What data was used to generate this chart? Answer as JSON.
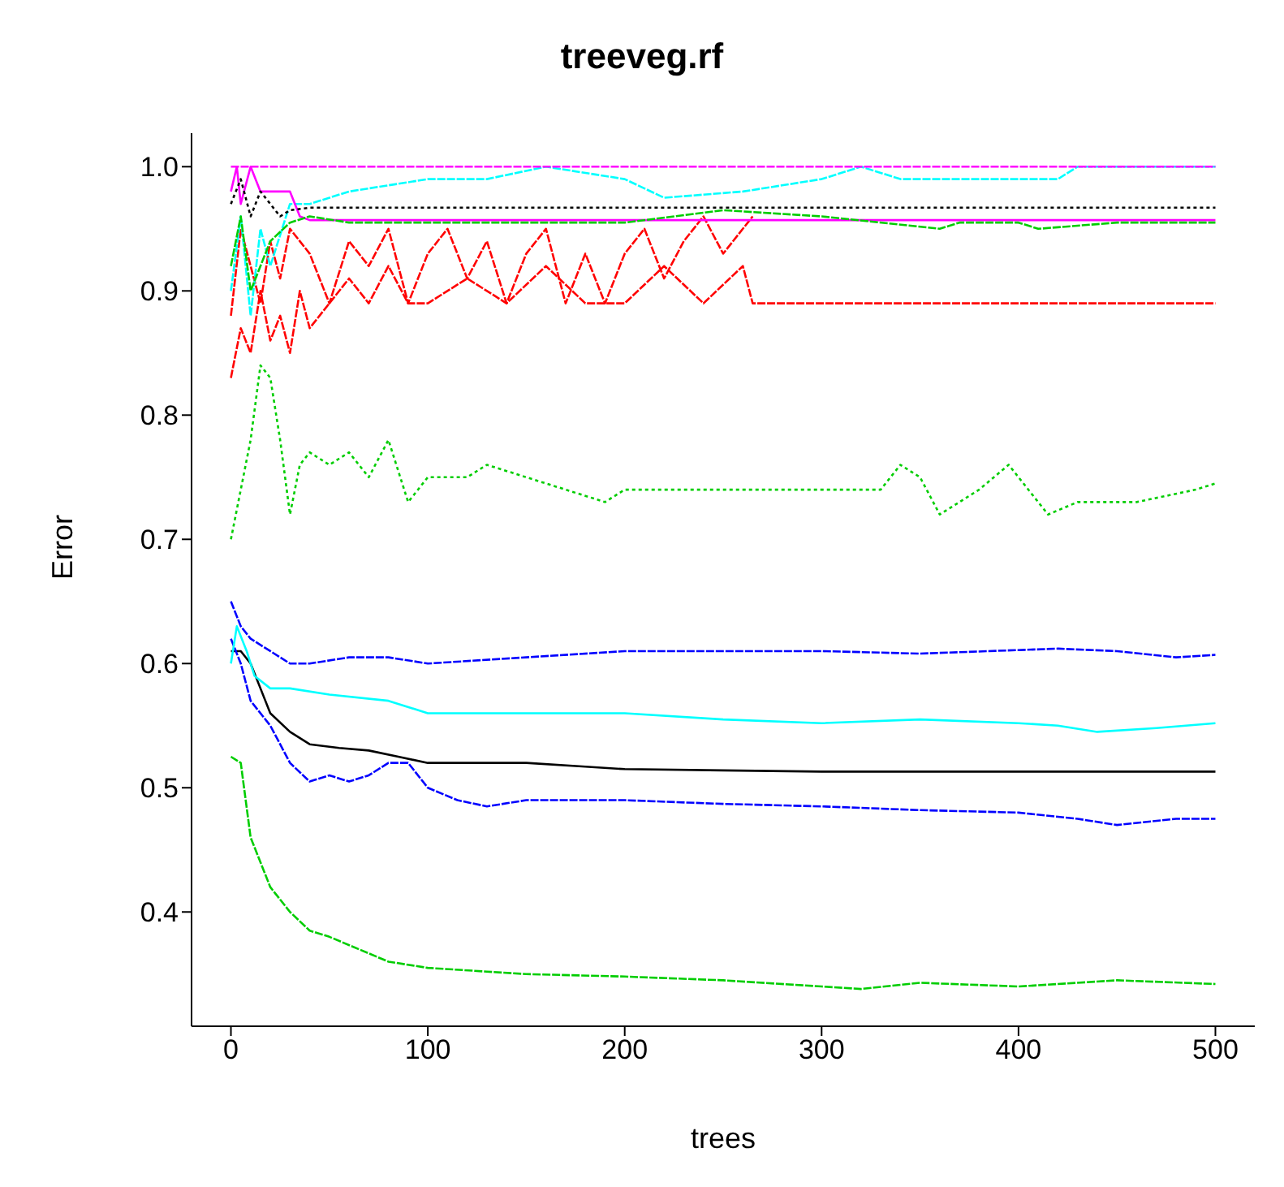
{
  "chart_data": {
    "type": "line",
    "title": "treeveg.rf",
    "xlabel": "trees",
    "ylabel": "Error",
    "xlim": [
      -20,
      520
    ],
    "ylim": [
      0.308,
      1.027
    ],
    "xticks": [
      0,
      100,
      200,
      300,
      400,
      500
    ],
    "yticks": [
      {
        "value": 0.4,
        "label": "0.4"
      },
      {
        "value": 0.5,
        "label": "0.5"
      },
      {
        "value": 0.6,
        "label": "0.6"
      },
      {
        "value": 0.7,
        "label": "0.7"
      },
      {
        "value": 0.8,
        "label": "0.8"
      },
      {
        "value": 0.9,
        "label": "0.9"
      },
      {
        "value": 1.0,
        "label": "1.0"
      }
    ],
    "series": [
      {
        "color": "#000000",
        "line_style": "solid",
        "x": [
          0,
          5,
          10,
          15,
          20,
          30,
          40,
          55,
          70,
          85,
          100,
          130,
          150,
          180,
          200,
          250,
          300,
          350,
          400,
          450,
          500
        ],
        "values": [
          0.61,
          0.61,
          0.6,
          0.58,
          0.56,
          0.545,
          0.535,
          0.532,
          0.53,
          0.525,
          0.52,
          0.52,
          0.52,
          0.517,
          0.515,
          0.514,
          0.513,
          0.513,
          0.513,
          0.513,
          0.513
        ]
      },
      {
        "color": "#ff0000",
        "line_style": "dashed",
        "x": [
          0,
          5,
          10,
          15,
          20,
          25,
          30,
          40,
          50,
          60,
          70,
          80,
          90,
          100,
          110,
          120,
          130,
          140,
          150,
          160,
          170,
          180,
          190,
          200,
          210,
          220,
          230,
          240,
          250,
          260,
          265
        ],
        "values": [
          0.88,
          0.95,
          0.92,
          0.89,
          0.94,
          0.91,
          0.95,
          0.93,
          0.89,
          0.94,
          0.92,
          0.95,
          0.89,
          0.93,
          0.95,
          0.91,
          0.94,
          0.89,
          0.93,
          0.95,
          0.89,
          0.93,
          0.89,
          0.93,
          0.95,
          0.91,
          0.94,
          0.96,
          0.93,
          0.95,
          0.96
        ]
      },
      {
        "color": "#00cd00",
        "line_style": "dotted",
        "x": [
          0,
          5,
          10,
          15,
          20,
          25,
          30,
          35,
          40,
          50,
          60,
          70,
          80,
          90,
          100,
          120,
          130,
          150,
          170,
          190,
          200,
          250,
          330,
          340,
          350,
          360,
          380,
          395,
          415,
          430,
          460,
          490,
          500
        ],
        "values": [
          0.7,
          0.74,
          0.78,
          0.84,
          0.83,
          0.78,
          0.72,
          0.76,
          0.77,
          0.76,
          0.77,
          0.75,
          0.78,
          0.73,
          0.75,
          0.75,
          0.76,
          0.75,
          0.74,
          0.73,
          0.74,
          0.74,
          0.74,
          0.76,
          0.75,
          0.72,
          0.74,
          0.76,
          0.72,
          0.73,
          0.73,
          0.74,
          0.745
        ]
      },
      {
        "color": "#0000ff",
        "line_style": "dashed",
        "x": [
          0,
          5,
          10,
          20,
          30,
          40,
          60,
          80,
          100,
          150,
          200,
          250,
          300,
          350,
          420,
          450,
          480,
          500
        ],
        "values": [
          0.65,
          0.63,
          0.62,
          0.61,
          0.6,
          0.6,
          0.605,
          0.605,
          0.6,
          0.605,
          0.61,
          0.61,
          0.61,
          0.608,
          0.612,
          0.61,
          0.605,
          0.607
        ]
      },
      {
        "color": "#00ffff",
        "line_style": "dashed",
        "x": [
          0,
          5,
          10,
          15,
          20,
          30,
          40,
          60,
          80,
          100,
          130,
          160,
          200,
          220,
          260,
          300,
          320,
          340,
          380,
          411,
          420,
          430,
          500
        ],
        "values": [
          0.9,
          0.96,
          0.88,
          0.95,
          0.92,
          0.97,
          0.97,
          0.98,
          0.985,
          0.99,
          0.99,
          1.0,
          0.99,
          0.975,
          0.98,
          0.99,
          1.0,
          0.99,
          0.99,
          0.99,
          0.99,
          1.0,
          1.0
        ]
      },
      {
        "color": "#ff00ff",
        "line_style": "solid",
        "x": [
          0,
          3,
          5,
          10,
          15,
          20,
          30,
          35,
          40,
          100,
          200,
          300,
          400,
          500
        ],
        "values": [
          0.98,
          1.0,
          0.97,
          1.0,
          0.98,
          0.98,
          0.98,
          0.96,
          0.957,
          0.957,
          0.957,
          0.957,
          0.957,
          0.957
        ]
      },
      {
        "color": "#00cd00",
        "line_style": "dashed",
        "x": [
          0,
          5,
          10,
          20,
          30,
          40,
          60,
          100,
          200,
          250,
          300,
          360,
          370,
          400,
          410,
          450,
          500
        ],
        "values": [
          0.92,
          0.96,
          0.9,
          0.94,
          0.955,
          0.96,
          0.955,
          0.955,
          0.955,
          0.965,
          0.96,
          0.95,
          0.955,
          0.955,
          0.95,
          0.955,
          0.955
        ]
      },
      {
        "color": "#0000ff",
        "line_style": "dashed",
        "x": [
          0,
          5,
          10,
          20,
          30,
          40,
          50,
          60,
          70,
          80,
          90,
          100,
          115,
          130,
          150,
          180,
          200,
          250,
          300,
          350,
          400,
          430,
          450,
          480,
          500
        ],
        "values": [
          0.62,
          0.6,
          0.57,
          0.55,
          0.52,
          0.505,
          0.51,
          0.505,
          0.51,
          0.52,
          0.52,
          0.5,
          0.49,
          0.485,
          0.49,
          0.49,
          0.49,
          0.487,
          0.485,
          0.482,
          0.48,
          0.475,
          0.47,
          0.475,
          0.475
        ]
      },
      {
        "color": "#00ffff",
        "line_style": "solid",
        "x": [
          0,
          3,
          8,
          12,
          20,
          30,
          50,
          80,
          100,
          130,
          150,
          200,
          250,
          300,
          350,
          400,
          420,
          440,
          470,
          500
        ],
        "values": [
          0.6,
          0.63,
          0.61,
          0.59,
          0.58,
          0.58,
          0.575,
          0.57,
          0.56,
          0.56,
          0.56,
          0.56,
          0.555,
          0.552,
          0.555,
          0.552,
          0.55,
          0.545,
          0.548,
          0.552
        ]
      },
      {
        "color": "#ff00ff",
        "line_style": "dashed",
        "x": [
          0,
          100,
          200,
          300,
          400,
          500
        ],
        "values": [
          1.0,
          1.0,
          1.0,
          1.0,
          1.0,
          1.0
        ]
      },
      {
        "color": "#000000",
        "line_style": "dotted",
        "x": [
          0,
          5,
          10,
          15,
          20,
          25,
          30,
          40,
          100,
          200,
          300,
          400,
          500
        ],
        "values": [
          0.97,
          0.99,
          0.96,
          0.98,
          0.97,
          0.96,
          0.965,
          0.967,
          0.967,
          0.967,
          0.967,
          0.967,
          0.967
        ]
      },
      {
        "color": "#ff0000",
        "line_style": "dashed",
        "x": [
          0,
          5,
          10,
          15,
          20,
          25,
          30,
          35,
          40,
          50,
          60,
          70,
          80,
          90,
          100,
          120,
          140,
          160,
          180,
          200,
          220,
          240,
          260,
          265,
          300,
          400,
          500
        ],
        "values": [
          0.83,
          0.87,
          0.85,
          0.9,
          0.86,
          0.88,
          0.85,
          0.9,
          0.87,
          0.89,
          0.91,
          0.89,
          0.92,
          0.89,
          0.89,
          0.91,
          0.89,
          0.92,
          0.89,
          0.89,
          0.92,
          0.89,
          0.92,
          0.89,
          0.89,
          0.89,
          0.89
        ]
      },
      {
        "color": "#00cd00",
        "line_style": "dashed",
        "x": [
          0,
          5,
          10,
          20,
          30,
          40,
          50,
          65,
          80,
          100,
          130,
          150,
          200,
          250,
          300,
          320,
          350,
          400,
          450,
          500
        ],
        "values": [
          0.525,
          0.52,
          0.46,
          0.42,
          0.4,
          0.385,
          0.38,
          0.37,
          0.36,
          0.355,
          0.352,
          0.35,
          0.348,
          0.345,
          0.34,
          0.338,
          0.343,
          0.34,
          0.345,
          0.342
        ]
      }
    ]
  }
}
